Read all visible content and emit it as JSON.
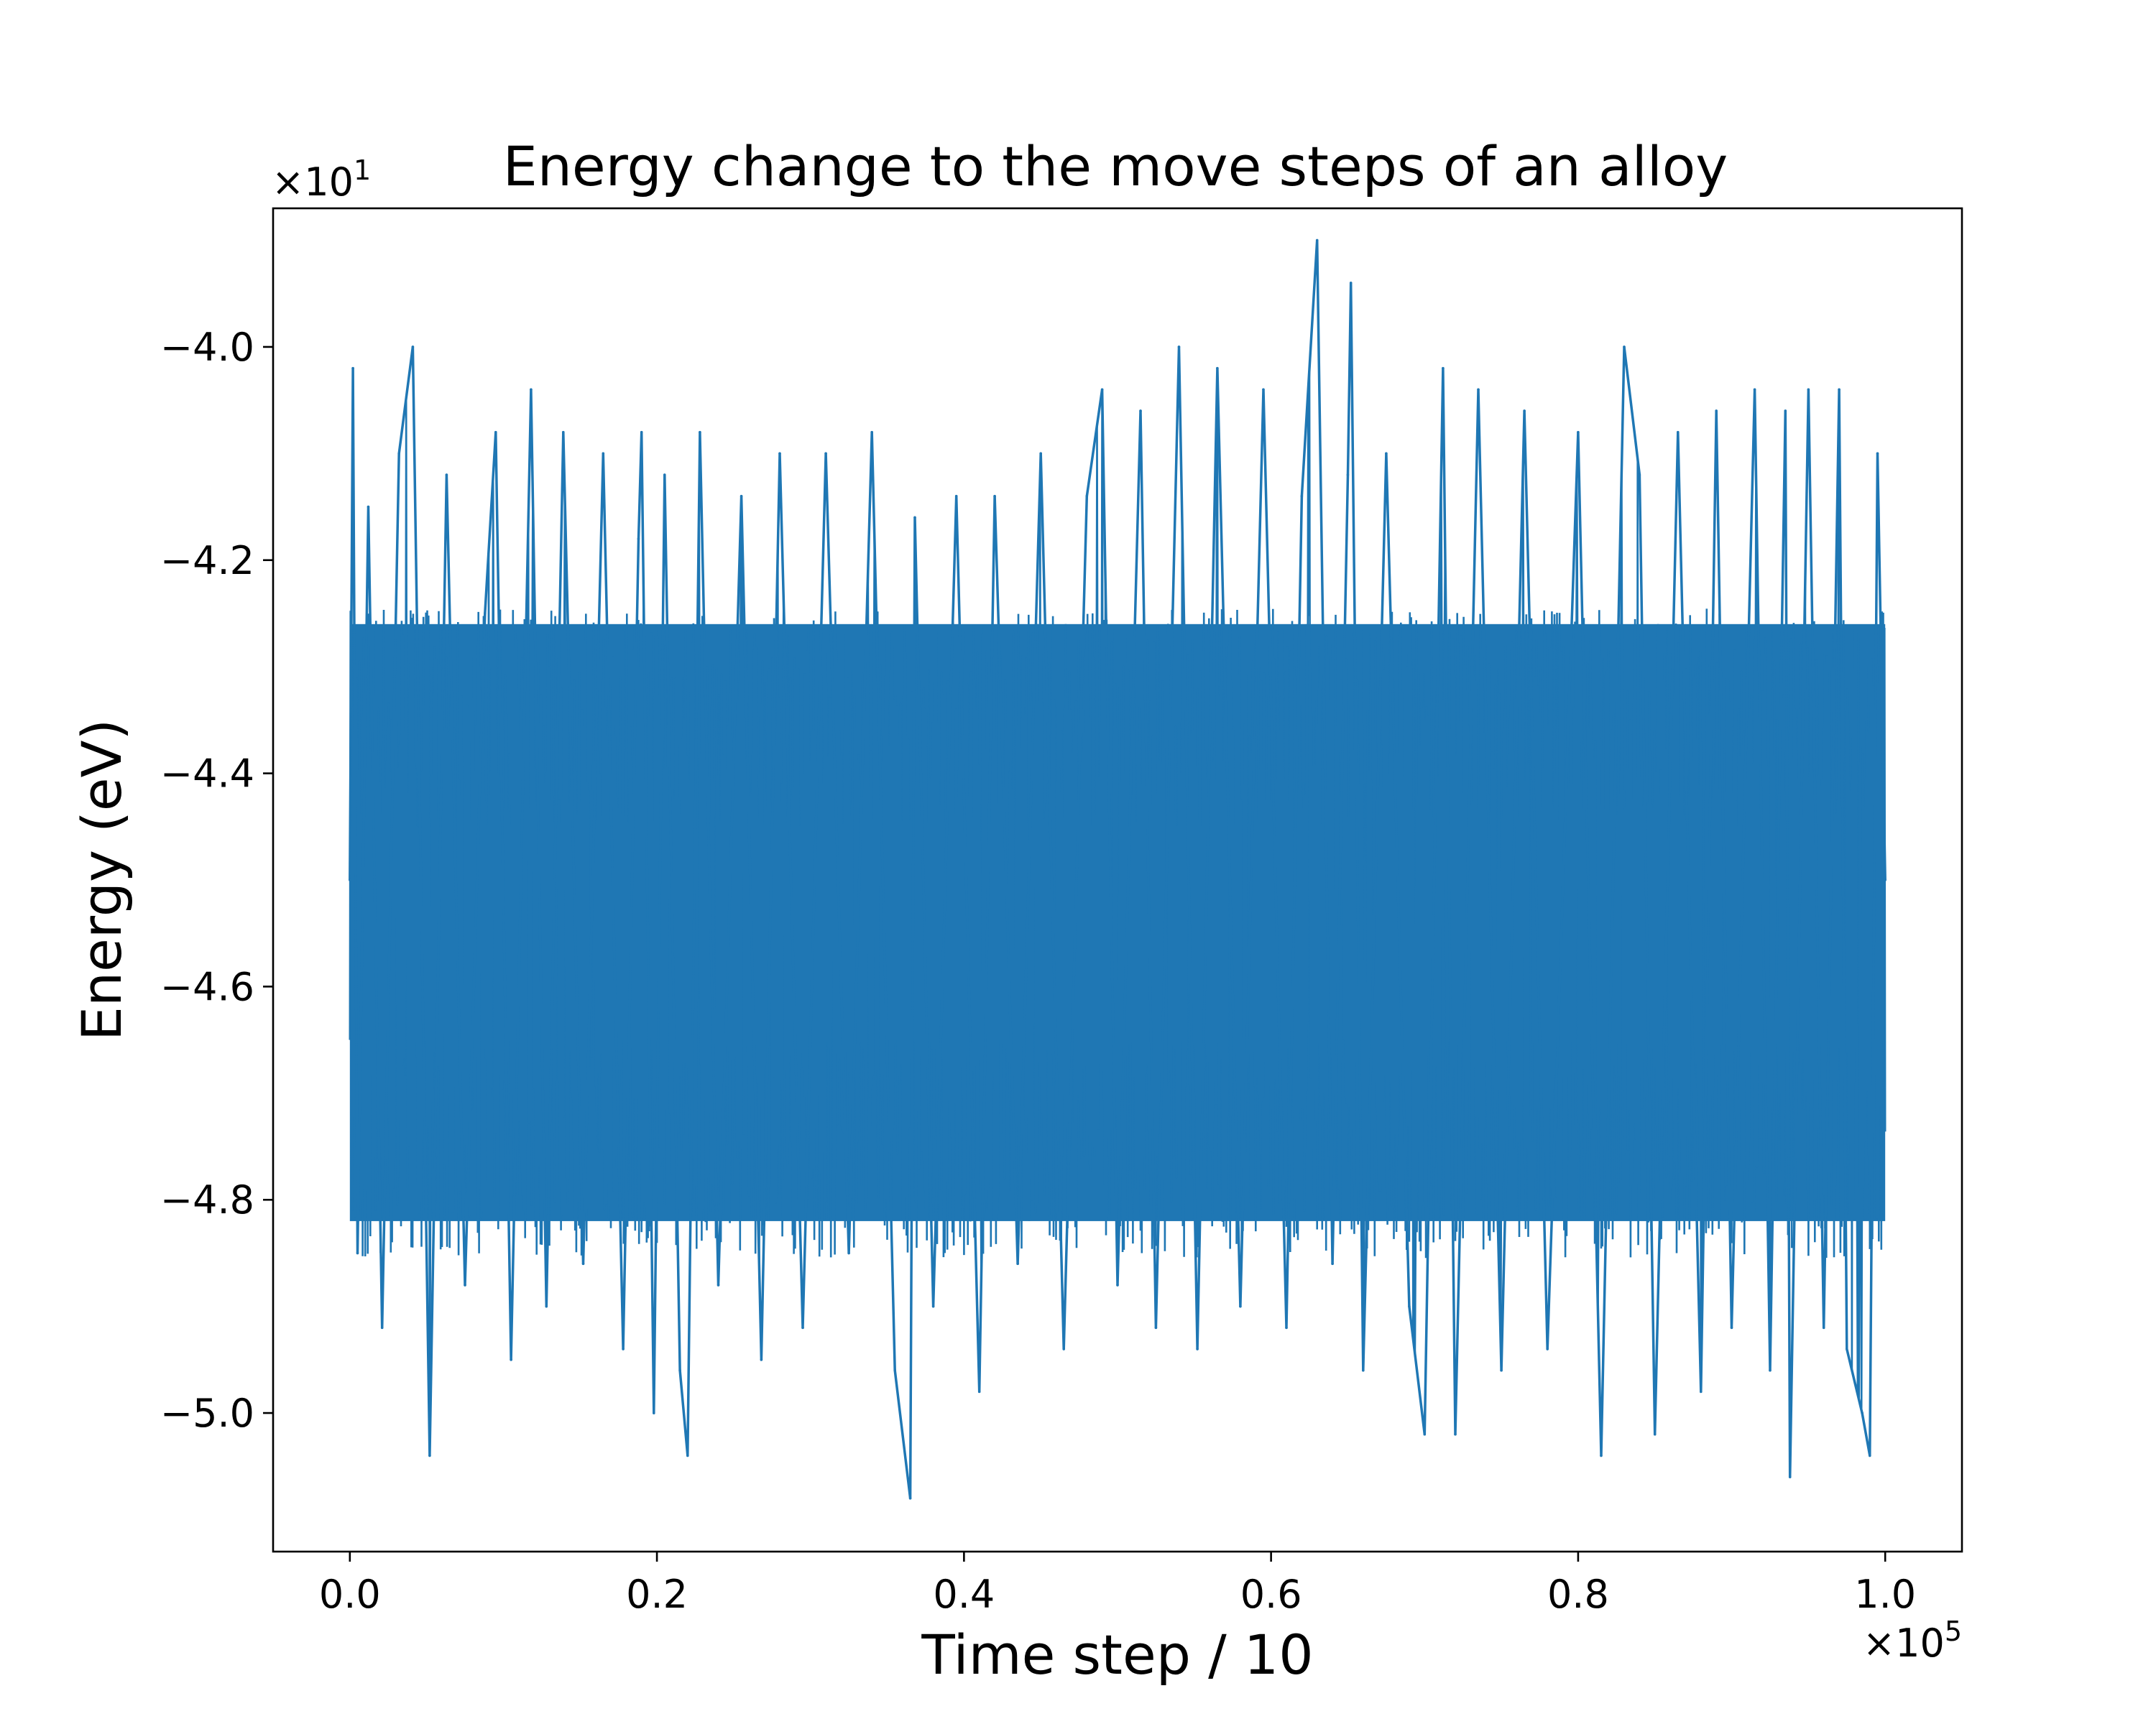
{
  "chart_data": {
    "type": "line",
    "title": "Energy change to the move steps of an alloy",
    "xlabel": "Time step / 10",
    "ylabel": "Energy (eV)",
    "x_multiplier": "×10",
    "x_multiplier_exp": "5",
    "y_multiplier": "×10",
    "y_multiplier_exp": "1",
    "xlim": [
      -0.05,
      1.05
    ],
    "ylim": [
      -5.13,
      -3.87
    ],
    "xticks": [
      {
        "value": 0.0,
        "label": "0.0"
      },
      {
        "value": 0.2,
        "label": "0.2"
      },
      {
        "value": 0.4,
        "label": "0.4"
      },
      {
        "value": 0.6,
        "label": "0.6"
      },
      {
        "value": 0.8,
        "label": "0.8"
      },
      {
        "value": 1.0,
        "label": "1.0"
      }
    ],
    "yticks": [
      {
        "value": -4.0,
        "label": "−4.0"
      },
      {
        "value": -4.2,
        "label": "−4.2"
      },
      {
        "value": -4.4,
        "label": "−4.4"
      },
      {
        "value": -4.6,
        "label": "−4.6"
      },
      {
        "value": -4.8,
        "label": "−4.8"
      },
      {
        "value": -5.0,
        "label": "−5.0"
      }
    ],
    "grid": false,
    "series": [
      {
        "color": "#1f77b4",
        "x": [
          0.0,
          0.002,
          0.005,
          0.012,
          0.021,
          0.032,
          0.041,
          0.052,
          0.063,
          0.075,
          0.088,
          0.095,
          0.105,
          0.118,
          0.128,
          0.139,
          0.152,
          0.165,
          0.178,
          0.188,
          0.19,
          0.198,
          0.205,
          0.215,
          0.22,
          0.228,
          0.24,
          0.255,
          0.268,
          0.28,
          0.295,
          0.31,
          0.325,
          0.34,
          0.355,
          0.365,
          0.368,
          0.38,
          0.395,
          0.41,
          0.42,
          0.435,
          0.45,
          0.465,
          0.48,
          0.49,
          0.5,
          0.515,
          0.525,
          0.54,
          0.552,
          0.565,
          0.58,
          0.595,
          0.61,
          0.62,
          0.63,
          0.64,
          0.65,
          0.652,
          0.66,
          0.675,
          0.69,
          0.7,
          0.712,
          0.72,
          0.735,
          0.75,
          0.765,
          0.78,
          0.8,
          0.815,
          0.83,
          0.84,
          0.85,
          0.865,
          0.88,
          0.89,
          0.9,
          0.915,
          0.925,
          0.935,
          0.938,
          0.95,
          0.96,
          0.97,
          0.975,
          0.985,
          0.99,
          0.995,
          1.0
        ],
        "y": [
          -4.5,
          -4.02,
          -4.85,
          -4.15,
          -4.92,
          -4.1,
          -4.0,
          -5.04,
          -4.12,
          -4.88,
          -4.25,
          -4.08,
          -4.95,
          -4.04,
          -4.9,
          -4.08,
          -4.86,
          -4.1,
          -4.94,
          -4.18,
          -4.08,
          -5.0,
          -4.12,
          -4.96,
          -5.04,
          -4.08,
          -4.88,
          -4.14,
          -4.95,
          -4.1,
          -4.92,
          -4.1,
          -4.85,
          -4.08,
          -4.96,
          -5.08,
          -4.16,
          -4.9,
          -4.14,
          -4.98,
          -4.14,
          -4.86,
          -4.1,
          -4.94,
          -4.14,
          -4.04,
          -4.88,
          -4.06,
          -4.92,
          -4.0,
          -4.94,
          -4.02,
          -4.9,
          -4.04,
          -4.92,
          -4.14,
          -3.9,
          -4.86,
          -4.12,
          -3.94,
          -4.96,
          -4.1,
          -4.9,
          -5.02,
          -4.02,
          -5.02,
          -4.04,
          -4.96,
          -4.06,
          -4.94,
          -4.08,
          -5.04,
          -4.0,
          -4.12,
          -5.02,
          -4.08,
          -4.98,
          -4.06,
          -4.92,
          -4.04,
          -4.96,
          -4.06,
          -5.06,
          -4.04,
          -4.92,
          -4.04,
          -4.94,
          -5.0,
          -5.04,
          -4.1,
          -4.5
        ]
      }
    ]
  }
}
